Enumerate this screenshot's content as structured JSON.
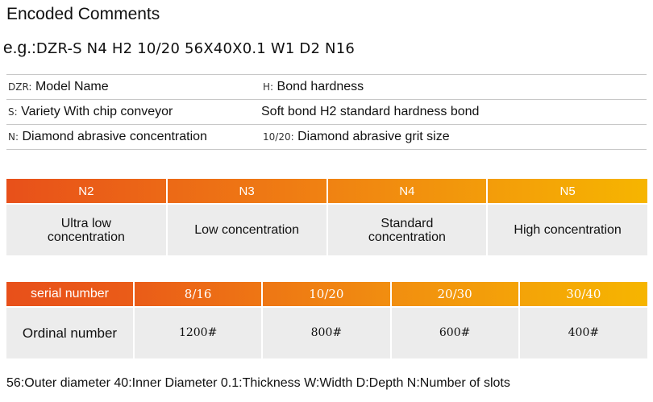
{
  "title": "Encoded Comments",
  "example": {
    "prefix": "e.g.:",
    "code": "DZR-S N4 H2 10/20 56X40X0.1 W1 D2 N16"
  },
  "legend": [
    {
      "left_key": "DZR:",
      "left_text": "Model Name",
      "right_key": "H:",
      "right_text": "Bond hardness"
    },
    {
      "left_key": "S:",
      "left_text": "Variety With chip conveyor",
      "right_key": "",
      "right_text": "Soft bond H2 standard hardness bond"
    },
    {
      "left_key": "N:",
      "left_text": "Diamond abrasive concentration",
      "right_key": "10/20:",
      "right_text": "Diamond abrasive grit size"
    }
  ],
  "concentration_table": {
    "headers": [
      "N2",
      "N3",
      "N4",
      "N5"
    ],
    "values": [
      "Ultra low\nconcentration",
      "Low concentration",
      "Standard\nconcentration",
      "High concentration"
    ]
  },
  "grit_table": {
    "headers": [
      "serial number",
      "8/16",
      "10/20",
      "20/30",
      "30/40"
    ],
    "values": [
      "Ordinal number",
      "1200#",
      "800#",
      "600#",
      "400#"
    ]
  },
  "footer": "56:Outer diameter  40:Inner Diameter  0.1:Thickness  W:Width  D:Depth  N:Number of slots",
  "colors": {
    "gradient_start": "#e8501a",
    "gradient_end": "#f6b500",
    "cell_bg": "#ececec"
  }
}
